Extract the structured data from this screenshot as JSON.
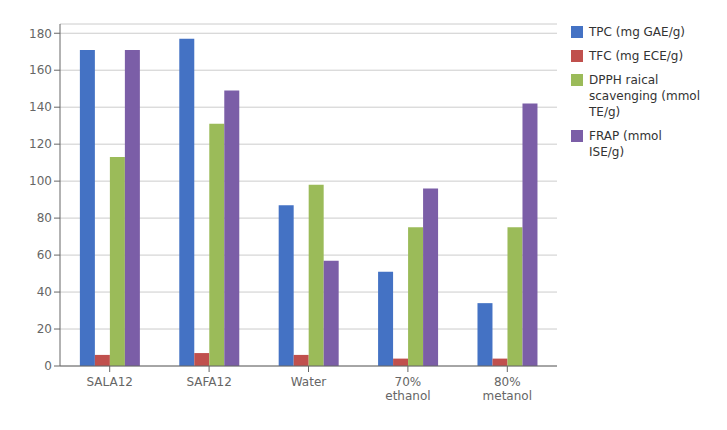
{
  "chart_data": {
    "type": "bar",
    "categories": [
      "SALA12",
      "SAFA12",
      "Water",
      "70%\nethanol",
      "80%\nmetanol"
    ],
    "series": [
      {
        "name": "TPC (mg GAE/g)",
        "color": "#4472C4",
        "values": [
          171,
          177,
          87,
          51,
          34
        ]
      },
      {
        "name": "TFC (mg ECE/g)",
        "color": "#C0504D",
        "values": [
          6,
          7,
          6,
          4,
          4
        ]
      },
      {
        "name": "DPPH raical\nscavenging (mmol\nTE/g)",
        "color": "#9BBB59",
        "values": [
          113,
          131,
          98,
          75,
          75
        ]
      },
      {
        "name": "FRAP (mmol\nISE/g)",
        "color": "#7B5EA7",
        "values": [
          171,
          149,
          57,
          96,
          142
        ]
      }
    ],
    "ylim": [
      0,
      185
    ],
    "yticks": [
      0,
      20,
      40,
      60,
      80,
      100,
      120,
      140,
      160,
      180
    ],
    "grid": true,
    "legend": "upper right"
  }
}
